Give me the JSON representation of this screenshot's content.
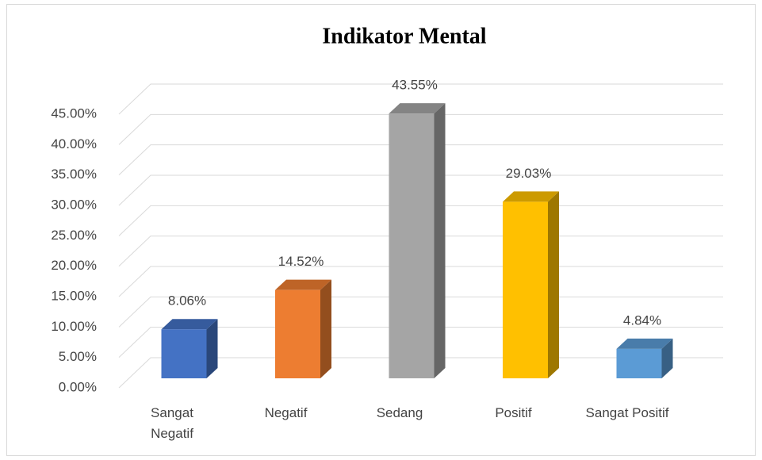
{
  "chart_data": {
    "type": "bar3d",
    "title": "Indikator Mental",
    "categories": [
      "Sangat Negatif",
      "Negatif",
      "Sedang",
      "Positif",
      "Sangat Positif"
    ],
    "values": [
      8.06,
      14.52,
      43.55,
      29.03,
      4.84
    ],
    "value_labels": [
      "8.06%",
      "14.52%",
      "43.55%",
      "29.03%",
      "4.84%"
    ],
    "colors": [
      "#4472c4",
      "#ed7d31",
      "#a5a5a5",
      "#ffc000",
      "#5b9bd5"
    ],
    "ylim": [
      0,
      45
    ],
    "yticks": [
      {
        "value": 0,
        "label": "0.00%"
      },
      {
        "value": 5,
        "label": "5.00%"
      },
      {
        "value": 10,
        "label": "10.00%"
      },
      {
        "value": 15,
        "label": "15.00%"
      },
      {
        "value": 20,
        "label": "20.00%"
      },
      {
        "value": 25,
        "label": "25.00%"
      },
      {
        "value": 30,
        "label": "30.00%"
      },
      {
        "value": 35,
        "label": "35.00%"
      },
      {
        "value": 40,
        "label": "40.00%"
      },
      {
        "value": 45,
        "label": "45.00%"
      }
    ],
    "grid": true
  }
}
